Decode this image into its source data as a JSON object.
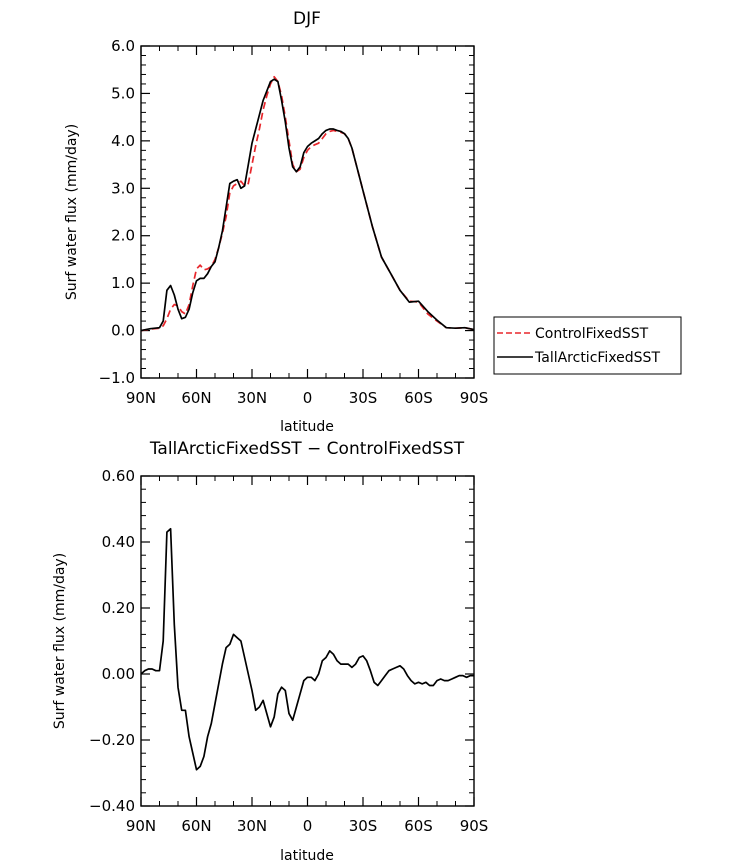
{
  "chart_data": [
    {
      "type": "line",
      "title": "DJF",
      "xlabel": "latitude",
      "ylabel": "Surf water flux (mm/day)",
      "xlim": [
        90,
        -90
      ],
      "ylim": [
        -1.0,
        6.0
      ],
      "xticks": [
        "90N",
        "60N",
        "30N",
        "0",
        "30S",
        "60S",
        "90S"
      ],
      "yticks": [
        "−1.0",
        "0.0",
        "1.0",
        "2.0",
        "3.0",
        "4.0",
        "5.0",
        "6.0"
      ],
      "legend": "right",
      "series": [
        {
          "name": "ControlFixedSST",
          "color": "#e8272c",
          "dash": "dashed",
          "x": [
            90,
            85,
            80,
            78,
            76,
            74,
            72,
            70,
            68,
            66,
            64,
            62,
            60,
            58,
            56,
            54,
            52,
            50,
            48,
            46,
            44,
            42,
            40,
            38,
            36,
            34,
            32,
            30,
            28,
            26,
            24,
            22,
            20,
            18,
            16,
            14,
            12,
            10,
            8,
            6,
            4,
            2,
            0,
            -2,
            -4,
            -6,
            -8,
            -10,
            -12,
            -14,
            -16,
            -18,
            -20,
            -22,
            -24,
            -26,
            -28,
            -30,
            -35,
            -40,
            -45,
            -50,
            -55,
            -60,
            -65,
            -70,
            -75,
            -80,
            -85,
            -90
          ],
          "y": [
            0.0,
            0.03,
            0.05,
            0.1,
            0.25,
            0.45,
            0.55,
            0.52,
            0.4,
            0.35,
            0.55,
            0.95,
            1.3,
            1.38,
            1.28,
            1.3,
            1.35,
            1.5,
            1.75,
            2.05,
            2.4,
            2.9,
            3.05,
            3.1,
            3.15,
            3.05,
            3.1,
            3.5,
            3.9,
            4.25,
            4.65,
            4.95,
            5.2,
            5.35,
            5.25,
            4.95,
            4.5,
            4.0,
            3.5,
            3.35,
            3.4,
            3.65,
            3.8,
            3.88,
            3.92,
            3.95,
            4.05,
            4.15,
            4.2,
            4.22,
            4.2,
            4.18,
            4.15,
            4.05,
            3.85,
            3.55,
            3.25,
            2.95,
            2.2,
            1.55,
            1.2,
            0.85,
            0.62,
            0.6,
            0.35,
            0.2,
            0.06,
            0.05,
            0.06,
            0.02
          ]
        },
        {
          "name": "TallArcticFixedSST",
          "color": "#000000",
          "dash": "solid",
          "x": [
            90,
            85,
            80,
            78,
            76,
            74,
            72,
            70,
            68,
            66,
            64,
            62,
            60,
            58,
            56,
            54,
            52,
            50,
            48,
            46,
            44,
            42,
            40,
            38,
            36,
            34,
            32,
            30,
            28,
            26,
            24,
            22,
            20,
            18,
            16,
            14,
            12,
            10,
            8,
            6,
            4,
            2,
            0,
            -2,
            -4,
            -6,
            -8,
            -10,
            -12,
            -14,
            -16,
            -18,
            -20,
            -22,
            -24,
            -26,
            -28,
            -30,
            -35,
            -40,
            -45,
            -50,
            -55,
            -60,
            -65,
            -70,
            -75,
            -80,
            -85,
            -90
          ],
          "y": [
            0.0,
            0.04,
            0.06,
            0.2,
            0.85,
            0.95,
            0.75,
            0.45,
            0.25,
            0.28,
            0.45,
            0.8,
            1.05,
            1.1,
            1.1,
            1.2,
            1.35,
            1.45,
            1.75,
            2.1,
            2.6,
            3.1,
            3.15,
            3.18,
            3.0,
            3.05,
            3.5,
            3.95,
            4.25,
            4.55,
            4.85,
            5.05,
            5.25,
            5.3,
            5.25,
            4.85,
            4.4,
            3.85,
            3.45,
            3.35,
            3.45,
            3.75,
            3.88,
            3.95,
            4.0,
            4.05,
            4.15,
            4.22,
            4.25,
            4.25,
            4.22,
            4.2,
            4.15,
            4.05,
            3.85,
            3.55,
            3.25,
            2.95,
            2.2,
            1.55,
            1.2,
            0.85,
            0.6,
            0.62,
            0.4,
            0.22,
            0.06,
            0.05,
            0.06,
            0.02
          ]
        }
      ]
    },
    {
      "type": "line",
      "title": "TallArcticFixedSST − ControlFixedSST",
      "xlabel": "latitude",
      "ylabel": "Surf water flux (mm/day)",
      "xlim": [
        90,
        -90
      ],
      "ylim": [
        -0.4,
        0.6
      ],
      "xticks": [
        "90N",
        "60N",
        "30N",
        "0",
        "30S",
        "60S",
        "90S"
      ],
      "yticks": [
        "−0.40",
        "−0.20",
        "0.00",
        "0.20",
        "0.40",
        "0.60"
      ],
      "series": [
        {
          "color": "#000000",
          "dash": "solid",
          "x": [
            90,
            88,
            86,
            84,
            82,
            80,
            78,
            76,
            74,
            72,
            70,
            68,
            66,
            64,
            62,
            60,
            58,
            56,
            54,
            52,
            50,
            48,
            46,
            44,
            42,
            40,
            38,
            36,
            34,
            32,
            30,
            28,
            26,
            24,
            22,
            20,
            18,
            16,
            14,
            12,
            10,
            8,
            6,
            4,
            2,
            0,
            -2,
            -4,
            -6,
            -8,
            -10,
            -12,
            -14,
            -16,
            -18,
            -20,
            -22,
            -24,
            -26,
            -28,
            -30,
            -32,
            -34,
            -36,
            -38,
            -40,
            -42,
            -44,
            -46,
            -48,
            -50,
            -52,
            -54,
            -56,
            -58,
            -60,
            -62,
            -64,
            -66,
            -68,
            -70,
            -72,
            -74,
            -76,
            -78,
            -80,
            -82,
            -84,
            -86,
            -88,
            -90
          ],
          "y": [
            0.0,
            0.01,
            0.015,
            0.015,
            0.01,
            0.01,
            0.1,
            0.43,
            0.44,
            0.15,
            -0.04,
            -0.11,
            -0.11,
            -0.19,
            -0.24,
            -0.29,
            -0.28,
            -0.25,
            -0.19,
            -0.15,
            -0.09,
            -0.03,
            0.03,
            0.08,
            0.09,
            0.12,
            0.11,
            0.1,
            0.05,
            0.0,
            -0.05,
            -0.11,
            -0.1,
            -0.08,
            -0.12,
            -0.16,
            -0.13,
            -0.06,
            -0.04,
            -0.05,
            -0.12,
            -0.14,
            -0.1,
            -0.06,
            -0.02,
            -0.01,
            -0.01,
            -0.02,
            0.0,
            0.04,
            0.05,
            0.07,
            0.06,
            0.04,
            0.03,
            0.03,
            0.03,
            0.02,
            0.03,
            0.05,
            0.055,
            0.04,
            0.01,
            -0.025,
            -0.035,
            -0.02,
            -0.005,
            0.01,
            0.015,
            0.02,
            0.025,
            0.015,
            -0.005,
            -0.02,
            -0.03,
            -0.025,
            -0.03,
            -0.025,
            -0.035,
            -0.035,
            -0.02,
            -0.015,
            -0.02,
            -0.02,
            -0.015,
            -0.01,
            -0.005,
            -0.005,
            -0.01,
            -0.005,
            -0.005
          ]
        }
      ]
    }
  ]
}
